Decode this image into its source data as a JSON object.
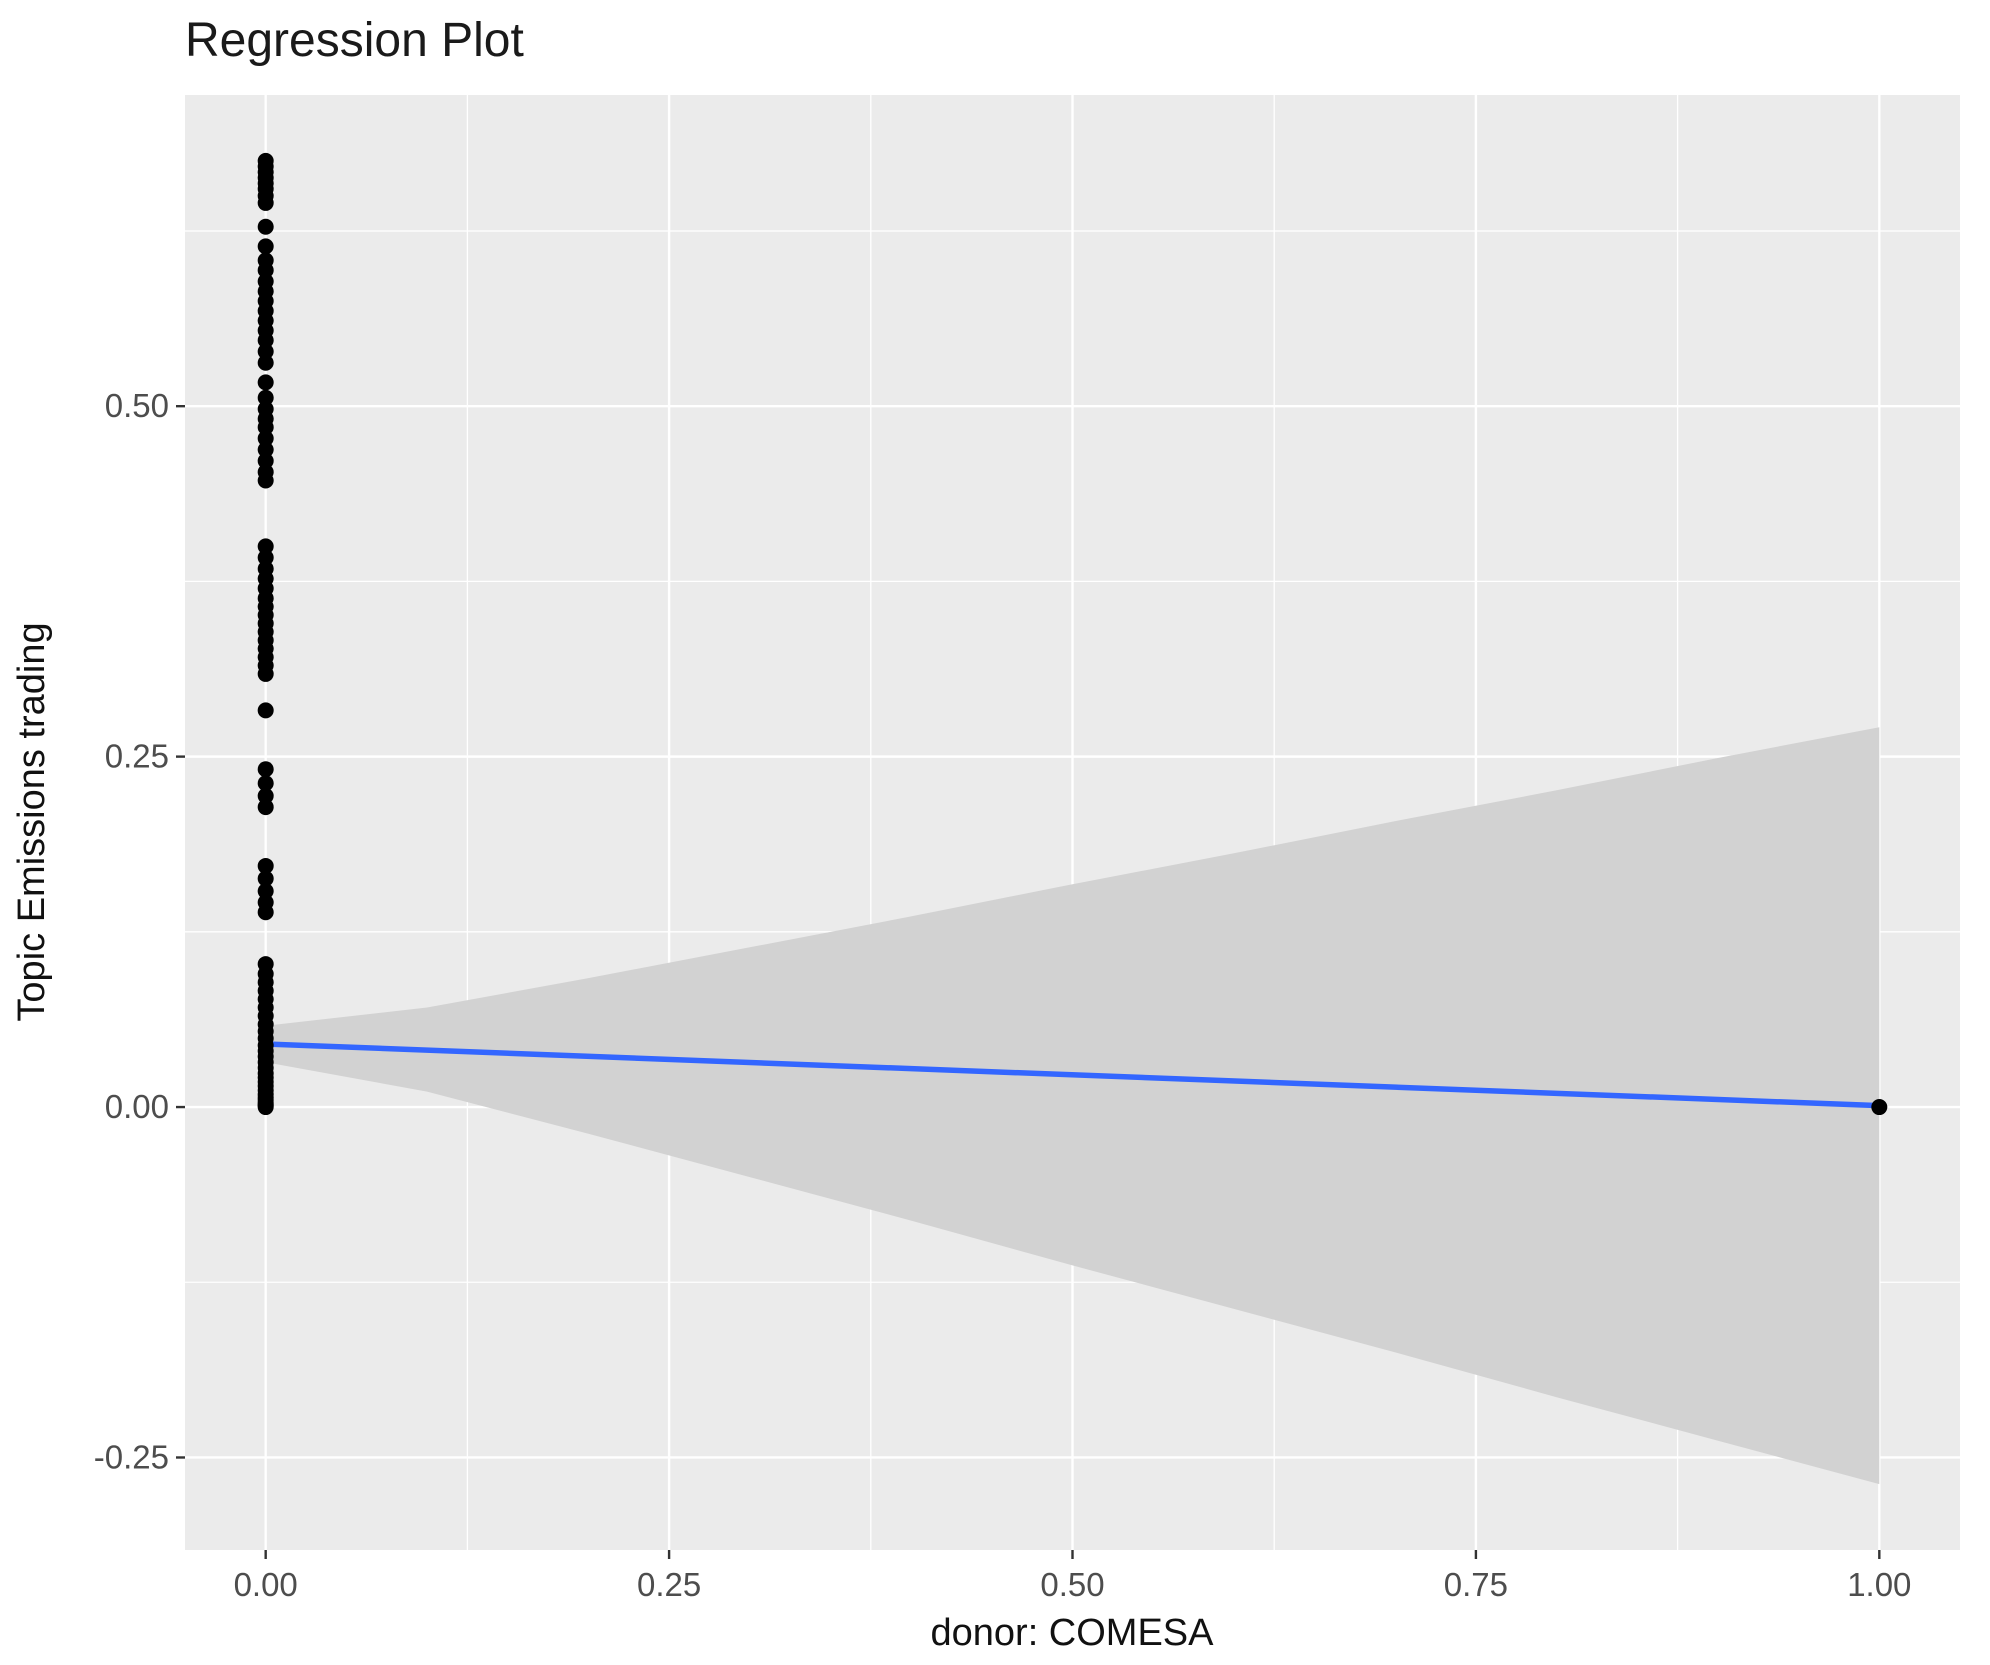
{
  "chart_data": {
    "type": "scatter",
    "title": "Regression Plot",
    "xlabel": "donor: COMESA",
    "ylabel": "Topic Emissions trading",
    "legend": "none",
    "grid": true,
    "xlim": [
      -0.05,
      1.05
    ],
    "ylim": [
      -0.316,
      0.722
    ],
    "x_ticks": [
      0,
      0.25,
      0.5,
      0.75,
      1
    ],
    "x_tick_labels": [
      "0.00",
      "0.25",
      "0.50",
      "0.75",
      "1.00"
    ],
    "y_ticks": [
      -0.25,
      0,
      0.25,
      0.5
    ],
    "y_tick_labels": [
      "-0.25",
      "0.00",
      "0.25",
      "0.50"
    ],
    "x_minor": [
      0.125,
      0.375,
      0.625,
      0.875
    ],
    "y_minor": [
      -0.125,
      0.125,
      0.375,
      0.625
    ],
    "points": [
      [
        0,
        0.675
      ],
      [
        0,
        0.671
      ],
      [
        0,
        0.667
      ],
      [
        0,
        0.663
      ],
      [
        0,
        0.659
      ],
      [
        0,
        0.655
      ],
      [
        0,
        0.65
      ],
      [
        0,
        0.645
      ],
      [
        0,
        0.628
      ],
      [
        0,
        0.614
      ],
      [
        0,
        0.604
      ],
      [
        0,
        0.597
      ],
      [
        0,
        0.589
      ],
      [
        0,
        0.582
      ],
      [
        0,
        0.575
      ],
      [
        0,
        0.568
      ],
      [
        0,
        0.561
      ],
      [
        0,
        0.554
      ],
      [
        0,
        0.547
      ],
      [
        0,
        0.539
      ],
      [
        0,
        0.531
      ],
      [
        0,
        0.517
      ],
      [
        0,
        0.506
      ],
      [
        0,
        0.498
      ],
      [
        0,
        0.491
      ],
      [
        0,
        0.485
      ],
      [
        0,
        0.477
      ],
      [
        0,
        0.469
      ],
      [
        0,
        0.461
      ],
      [
        0,
        0.453
      ],
      [
        0,
        0.447
      ],
      [
        0,
        0.4
      ],
      [
        0,
        0.392
      ],
      [
        0,
        0.384
      ],
      [
        0,
        0.377
      ],
      [
        0,
        0.37
      ],
      [
        0,
        0.363
      ],
      [
        0,
        0.357
      ],
      [
        0,
        0.351
      ],
      [
        0,
        0.345
      ],
      [
        0,
        0.339
      ],
      [
        0,
        0.333
      ],
      [
        0,
        0.327
      ],
      [
        0,
        0.321
      ],
      [
        0,
        0.315
      ],
      [
        0,
        0.309
      ],
      [
        0,
        0.283
      ],
      [
        0,
        0.241
      ],
      [
        0,
        0.231
      ],
      [
        0,
        0.222
      ],
      [
        0,
        0.214
      ],
      [
        0,
        0.172
      ],
      [
        0,
        0.163
      ],
      [
        0,
        0.154
      ],
      [
        0,
        0.146
      ],
      [
        0,
        0.139
      ],
      [
        0,
        0.102
      ],
      [
        0,
        0.095
      ],
      [
        0,
        0.089
      ],
      [
        0,
        0.083
      ],
      [
        0,
        0.077
      ],
      [
        0,
        0.071
      ],
      [
        0,
        0.065
      ],
      [
        0,
        0.059
      ],
      [
        0,
        0.054
      ],
      [
        0,
        0.049
      ],
      [
        0,
        0.044
      ],
      [
        0,
        0.04
      ],
      [
        0,
        0.036
      ],
      [
        0,
        0.032
      ],
      [
        0,
        0.028
      ],
      [
        0,
        0.024
      ],
      [
        0,
        0.021
      ],
      [
        0,
        0.018
      ],
      [
        0,
        0.015
      ],
      [
        0,
        0.012
      ],
      [
        0,
        0.009
      ],
      [
        0,
        0.007
      ],
      [
        0,
        0.005
      ],
      [
        0,
        0.003
      ],
      [
        0,
        0.002
      ],
      [
        0,
        0.001
      ],
      [
        0,
        0.0
      ],
      [
        1,
        0.0
      ]
    ],
    "regression_line": {
      "x": [
        0,
        1
      ],
      "y": [
        0.045,
        0.001
      ]
    },
    "ci_band": {
      "x": [
        0,
        0.1,
        0.2,
        0.3,
        0.4,
        0.5,
        0.6,
        0.7,
        0.8,
        0.9,
        1.0
      ],
      "upper": [
        0.058,
        0.071,
        0.092,
        0.114,
        0.136,
        0.159,
        0.181,
        0.204,
        0.226,
        0.249,
        0.271
      ],
      "lower": [
        0.032,
        0.011,
        -0.019,
        -0.05,
        -0.081,
        -0.113,
        -0.144,
        -0.175,
        -0.207,
        -0.238,
        -0.269
      ]
    },
    "colors": {
      "panel_bg": "#EBEBEB",
      "grid": "#FFFFFF",
      "point": "#000000",
      "line": "#3366FF",
      "band": "#D2D2D2",
      "tick_mark": "#333333",
      "tick_label": "#4D4D4D",
      "text": "#1A1A1A"
    }
  }
}
